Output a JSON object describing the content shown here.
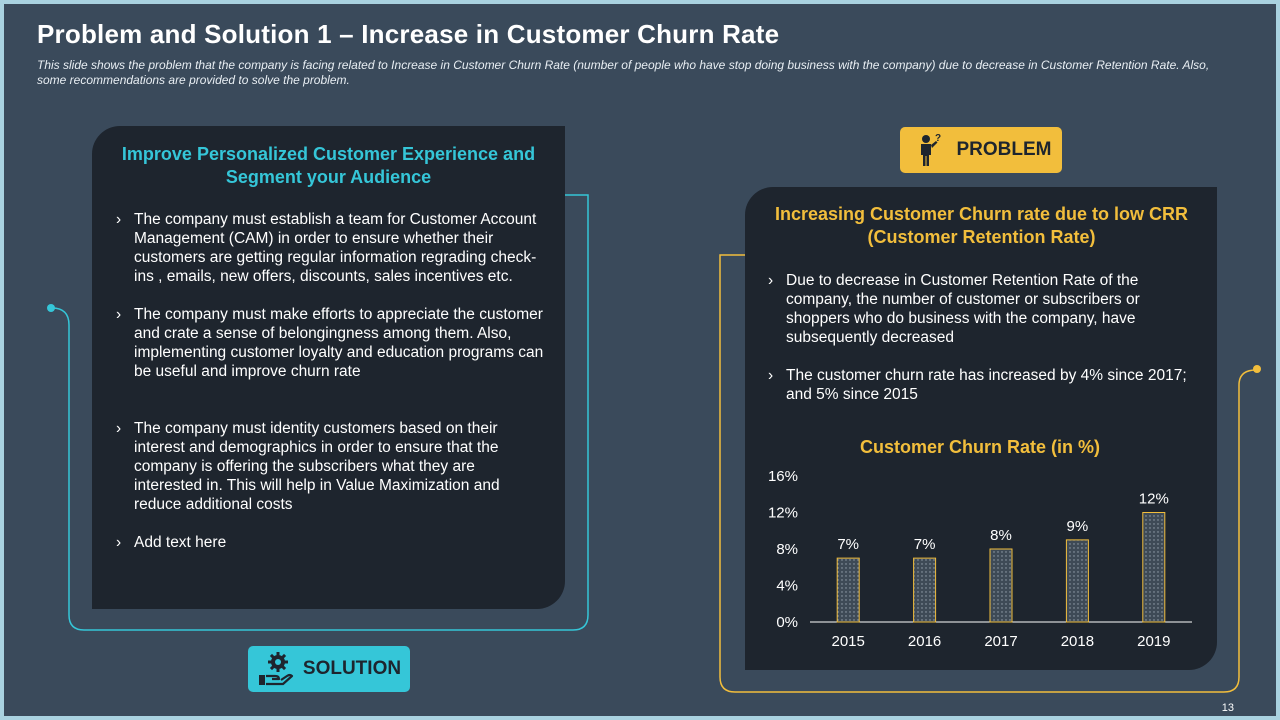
{
  "title": "Problem and Solution 1 – Increase in Customer Churn Rate",
  "subtitle": "This slide shows the problem that the company is facing related to Increase in Customer Churn Rate (number of people who have stop doing business with the company) due to decrease in Customer Retention Rate. Also, some recommendations are provided to solve the problem.",
  "solution": {
    "badge_label": "SOLUTION",
    "icon": "gear-hand-icon",
    "heading": "Improve Personalized Customer Experience and Segment your Audience",
    "bullets": [
      "The company must establish a team for Customer Account Management (CAM) in order to ensure whether their customers are getting regular information regrading check-ins , emails, new offers, discounts, sales incentives etc.",
      "The company must make efforts to appreciate the customer and crate a sense of belongingness among them. Also, implementing customer loyalty and education programs can be useful and improve churn rate",
      "The company must identity customers based on their interest and demographics in order to ensure that the company is offering the subscribers what they are interested in. This will help in Value Maximization and reduce additional costs",
      "Add text here"
    ]
  },
  "problem": {
    "badge_label": "PROBLEM",
    "icon": "confused-person-icon",
    "heading": "Increasing Customer Churn rate due to low CRR (Customer Retention Rate)",
    "bullets": [
      "Due to decrease in Customer Retention Rate of the company, the number of customer or subscribers or shoppers who do business with the company, have subsequently decreased",
      "The customer churn rate has increased by 4% since 2017; and 5% since 2015"
    ]
  },
  "bullet_mark": "›",
  "colors": {
    "accent_cyan": "#35c6d8",
    "accent_yellow": "#f2be3c",
    "panel": "#1e252e",
    "background": "#3a4a5b"
  },
  "chart_data": {
    "type": "bar",
    "title": "Customer Churn Rate (in %)",
    "categories": [
      "2015",
      "2016",
      "2017",
      "2018",
      "2019"
    ],
    "values": [
      7,
      7,
      8,
      9,
      12
    ],
    "data_labels": [
      "7%",
      "7%",
      "8%",
      "9%",
      "12%"
    ],
    "y_ticks": [
      "0%",
      "4%",
      "8%",
      "12%",
      "16%"
    ],
    "ylim": [
      0,
      16
    ],
    "xlabel": "",
    "ylabel": "",
    "grid": false
  },
  "page_number": "13"
}
